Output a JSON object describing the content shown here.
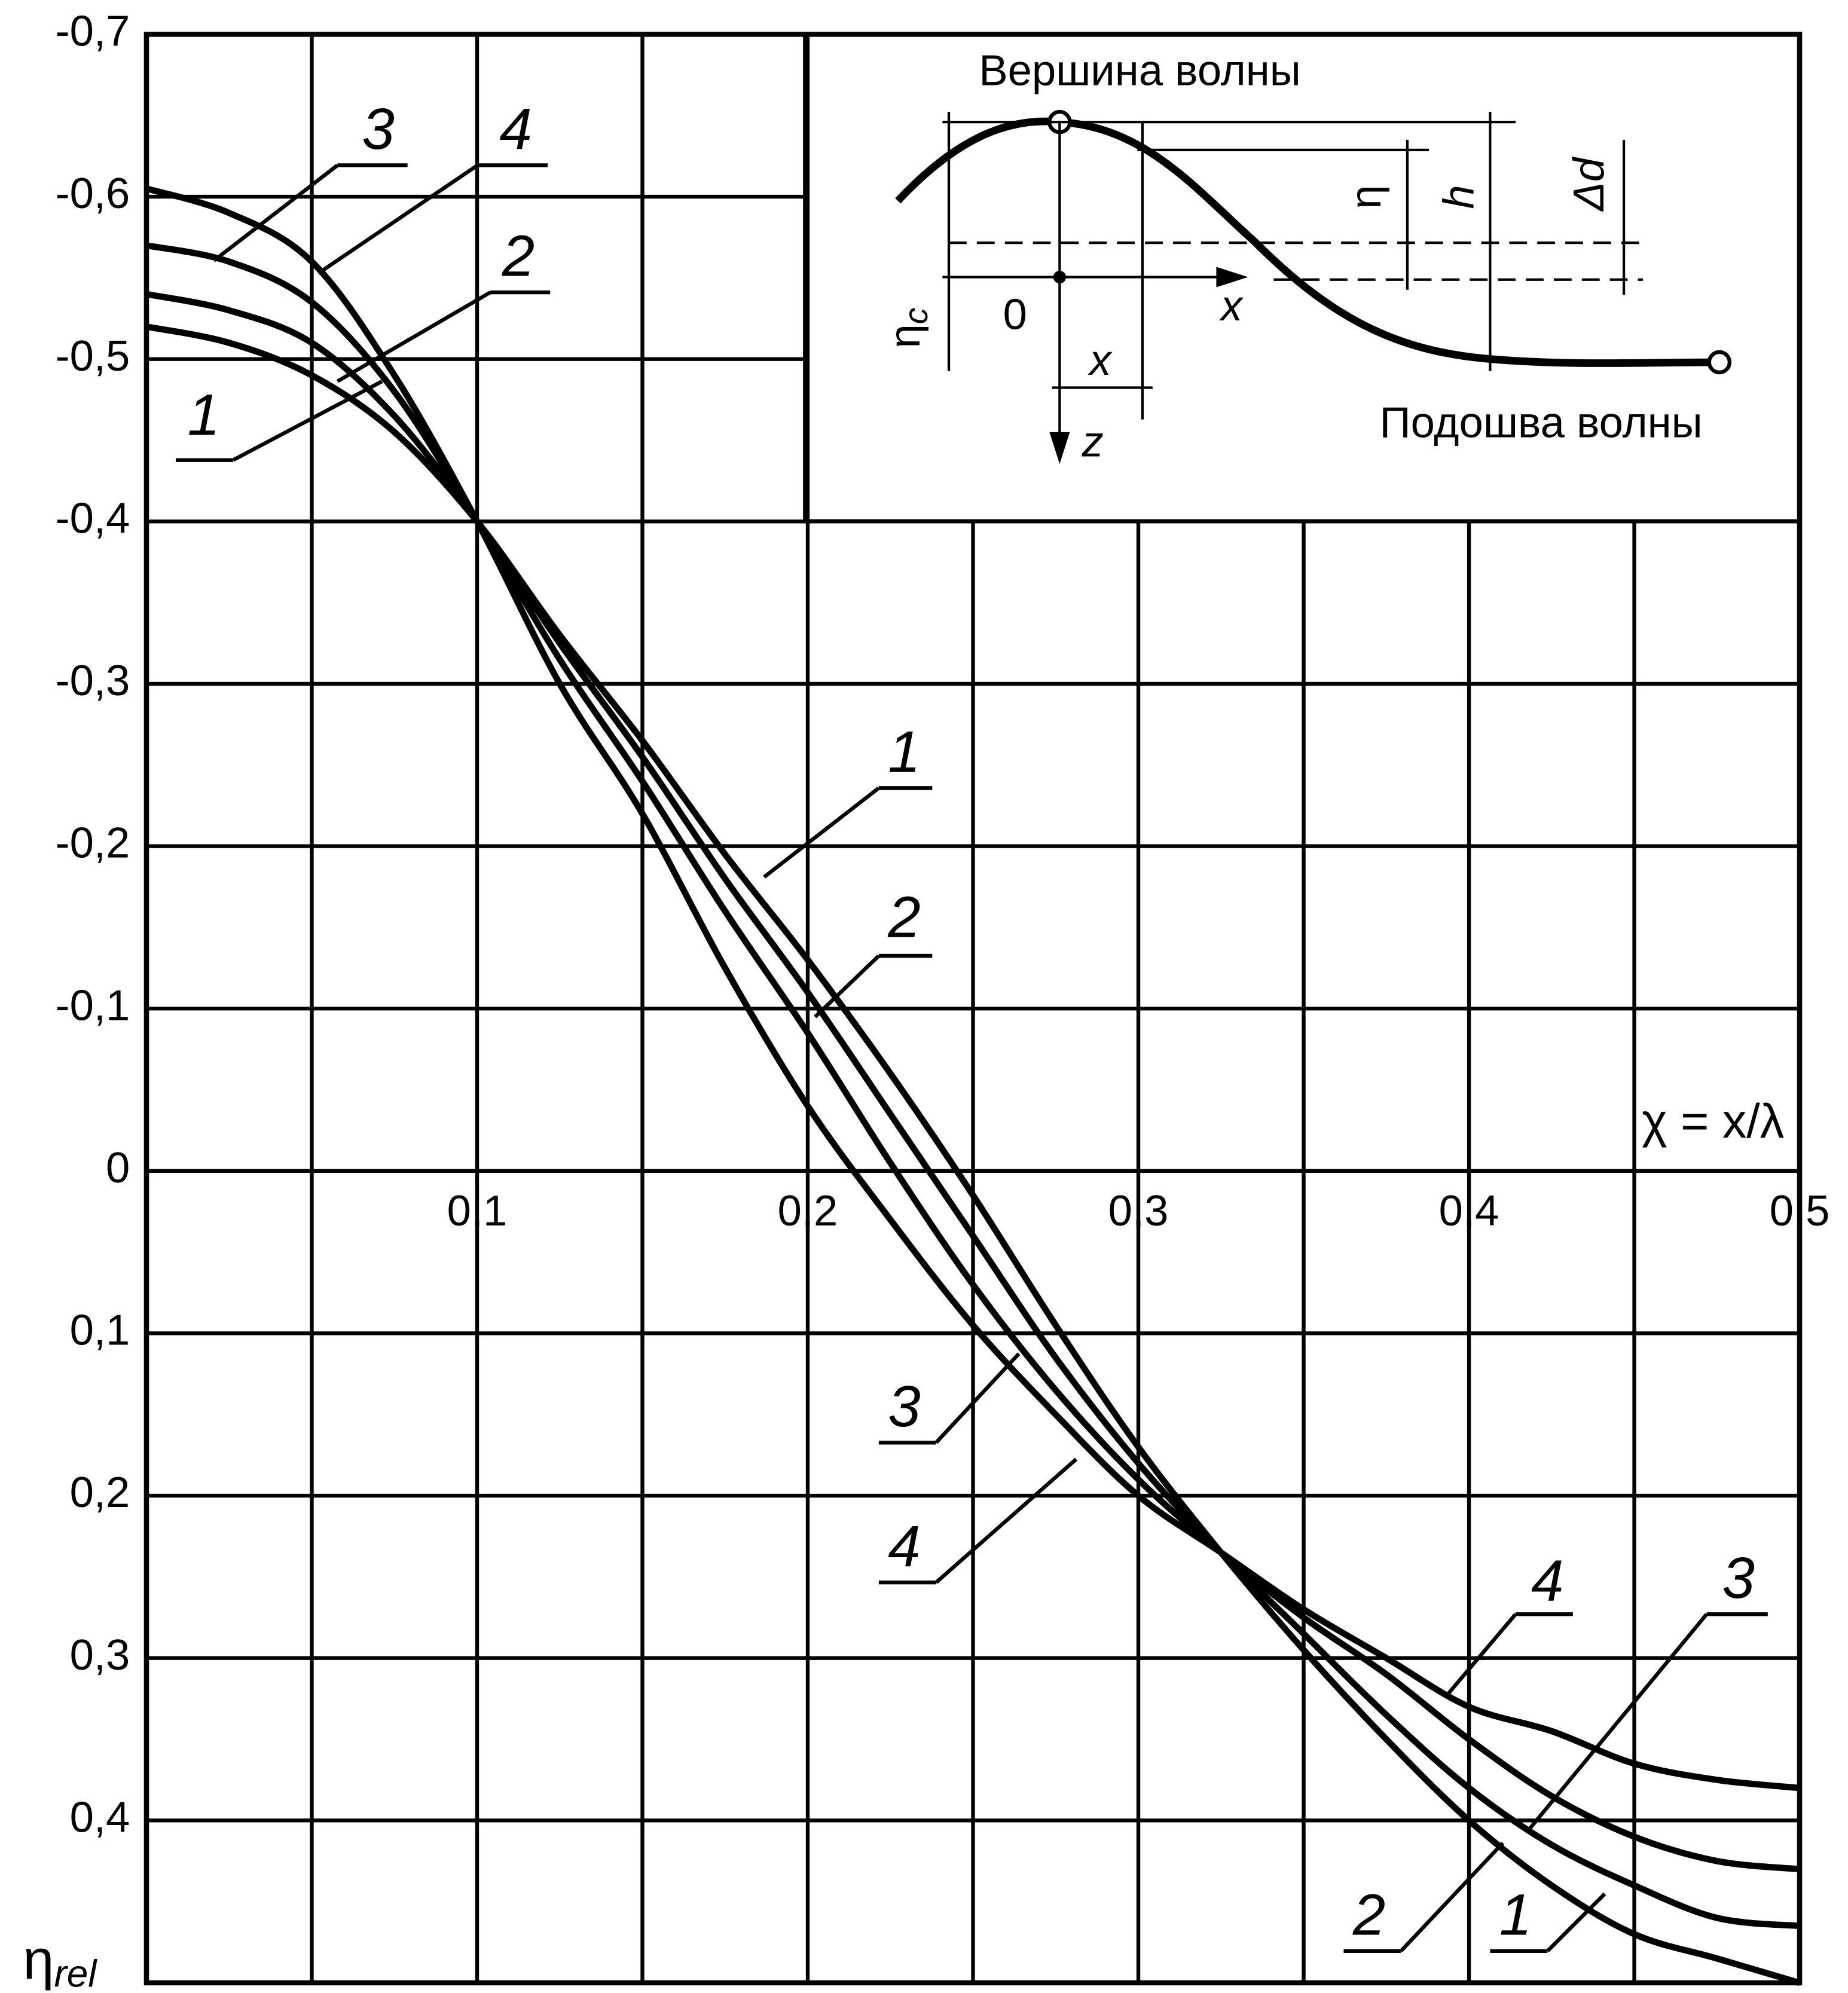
{
  "chart_data": {
    "type": "line",
    "xlabel": "χ = x/λ",
    "ylabel": {
      "main": "η",
      "sub": "rel"
    },
    "xlim": [
      0,
      0.5
    ],
    "ylim": [
      -0.7,
      0.5
    ],
    "y_inverted": true,
    "xticks": [
      {
        "value": 0.1,
        "label": "0,1"
      },
      {
        "value": 0.2,
        "label": "0,2"
      },
      {
        "value": 0.3,
        "label": "0,3"
      },
      {
        "value": 0.4,
        "label": "0,4"
      },
      {
        "value": 0.5,
        "label": "0,5"
      }
    ],
    "xgrid": [
      0.05,
      0.1,
      0.15,
      0.2,
      0.25,
      0.3,
      0.35,
      0.4,
      0.45
    ],
    "yticks": [
      {
        "value": -0.7,
        "label": "-0,7"
      },
      {
        "value": -0.6,
        "label": "-0,6"
      },
      {
        "value": -0.5,
        "label": "-0,5"
      },
      {
        "value": -0.4,
        "label": "-0,4"
      },
      {
        "value": -0.3,
        "label": "-0,3"
      },
      {
        "value": -0.2,
        "label": "-0,2"
      },
      {
        "value": -0.1,
        "label": "-0,1"
      },
      0,
      {
        "value": 0.1,
        "label": "0,1"
      },
      {
        "value": 0.2,
        "label": "0,2"
      },
      {
        "value": 0.3,
        "label": "0,3"
      },
      {
        "value": 0.4,
        "label": "0,4"
      }
    ],
    "grid": true,
    "x": [
      0,
      0.025,
      0.05,
      0.075,
      0.1,
      0.125,
      0.15,
      0.175,
      0.2,
      0.225,
      0.25,
      0.275,
      0.3,
      0.325,
      0.35,
      0.375,
      0.4,
      0.425,
      0.45,
      0.475,
      0.5
    ],
    "series": [
      {
        "name": "1",
        "color": "#000000",
        "values": [
          -0.52,
          -0.51,
          -0.49,
          -0.455,
          -0.4,
          -0.33,
          -0.265,
          -0.195,
          -0.13,
          -0.06,
          0.015,
          0.095,
          0.17,
          0.235,
          0.295,
          0.35,
          0.4,
          0.44,
          0.47,
          0.485,
          0.5
        ]
      },
      {
        "name": "2",
        "color": "#000000",
        "values": [
          -0.54,
          -0.53,
          -0.51,
          -0.465,
          -0.4,
          -0.325,
          -0.255,
          -0.18,
          -0.11,
          -0.035,
          0.04,
          0.115,
          0.18,
          0.235,
          0.285,
          0.335,
          0.38,
          0.415,
          0.44,
          0.46,
          0.465
        ]
      },
      {
        "name": "3",
        "color": "#000000",
        "values": [
          -0.57,
          -0.56,
          -0.535,
          -0.48,
          -0.4,
          -0.315,
          -0.24,
          -0.16,
          -0.085,
          -0.005,
          0.07,
          0.135,
          0.19,
          0.235,
          0.275,
          0.31,
          0.35,
          0.385,
          0.41,
          0.425,
          0.43
        ]
      },
      {
        "name": "4",
        "color": "#000000",
        "values": [
          -0.605,
          -0.59,
          -0.56,
          -0.49,
          -0.4,
          -0.3,
          -0.22,
          -0.125,
          -0.04,
          0.03,
          0.095,
          0.15,
          0.2,
          0.235,
          0.27,
          0.3,
          0.33,
          0.345,
          0.365,
          0.375,
          0.38
        ]
      }
    ],
    "inset": {
      "crest": "Вершина волны",
      "trough": "Подошва волны",
      "eta": "η",
      "h": "h",
      "delta_d": "Δd",
      "eta_c": {
        "main": "η",
        "sub": "c"
      },
      "origin": "0",
      "x_axis": "x",
      "x_dim": "x",
      "z_axis": "z"
    }
  }
}
